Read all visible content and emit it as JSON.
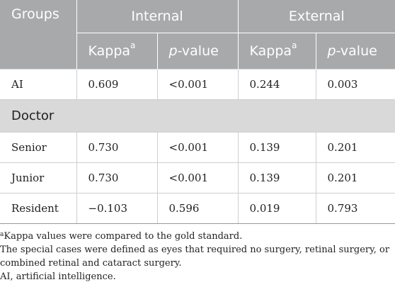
{
  "header": {
    "groups_label": "Groups",
    "internal_label": "Internal",
    "external_label": "External",
    "kappa_label": "Kappa",
    "kappa_sup": "a",
    "pvalue_italic": "p",
    "pvalue_rest": "-value"
  },
  "rows": {
    "ai": {
      "group": "AI",
      "int_kappa": "0.609",
      "int_p": "<0.001",
      "ext_kappa": "0.244",
      "ext_p": "0.003"
    },
    "section": {
      "label": "Doctor"
    },
    "senior": {
      "group": "Senior",
      "int_kappa": "0.730",
      "int_p": "<0.001",
      "ext_kappa": "0.139",
      "ext_p": "0.201"
    },
    "junior": {
      "group": "Junior",
      "int_kappa": "0.730",
      "int_p": "<0.001",
      "ext_kappa": "0.139",
      "ext_p": "0.201"
    },
    "resident": {
      "group": "Resident",
      "int_kappa": "−0.103",
      "int_p": "0.596",
      "ext_kappa": "0.019",
      "ext_p": "0.793"
    }
  },
  "notes": {
    "footnote_mark": "a",
    "footnote_text": "Kappa values were compared to the gold standard.",
    "special_cases": "The special cases were defined as eyes that required no surgery, retinal surgery, or combined retinal and cataract surgery.",
    "abbrev": "AI, artificial intelligence."
  }
}
